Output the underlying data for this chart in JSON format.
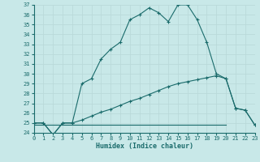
{
  "xlabel": "Humidex (Indice chaleur)",
  "bg_color": "#c8e8e8",
  "line_color": "#1a6b6b",
  "grid_color": "#b8d8d8",
  "xlim": [
    0,
    23
  ],
  "ylim": [
    24,
    37
  ],
  "xticks": [
    0,
    1,
    2,
    3,
    4,
    5,
    6,
    7,
    8,
    9,
    10,
    11,
    12,
    13,
    14,
    15,
    16,
    17,
    18,
    19,
    20,
    21,
    22,
    23
  ],
  "yticks": [
    24,
    25,
    26,
    27,
    28,
    29,
    30,
    31,
    32,
    33,
    34,
    35,
    36,
    37
  ],
  "curve1_x": [
    0,
    1,
    2,
    3,
    4,
    5,
    6,
    7,
    8,
    9,
    10,
    11,
    12,
    13,
    14,
    15,
    16,
    17,
    18,
    19,
    20,
    21,
    22,
    23
  ],
  "curve1_y": [
    25.0,
    25.0,
    23.8,
    25.0,
    25.0,
    29.0,
    29.5,
    31.5,
    32.5,
    33.2,
    35.5,
    36.0,
    36.7,
    36.2,
    35.3,
    37.0,
    37.0,
    35.5,
    33.2,
    30.0,
    29.5,
    26.5,
    26.3,
    24.8
  ],
  "curve2_x": [
    0,
    1,
    2,
    3,
    4,
    5,
    6,
    7,
    8,
    9,
    10,
    11,
    12,
    13,
    14,
    15,
    16,
    17,
    18,
    19,
    20,
    21,
    22,
    23
  ],
  "curve2_y": [
    25.0,
    25.0,
    23.8,
    25.0,
    25.0,
    25.3,
    25.7,
    26.1,
    26.4,
    26.8,
    27.2,
    27.5,
    27.9,
    28.3,
    28.7,
    29.0,
    29.2,
    29.4,
    29.6,
    29.8,
    29.5,
    26.5,
    26.3,
    24.8
  ],
  "flatline_x": [
    0,
    20
  ],
  "flatline_y": [
    24.8,
    24.8
  ]
}
